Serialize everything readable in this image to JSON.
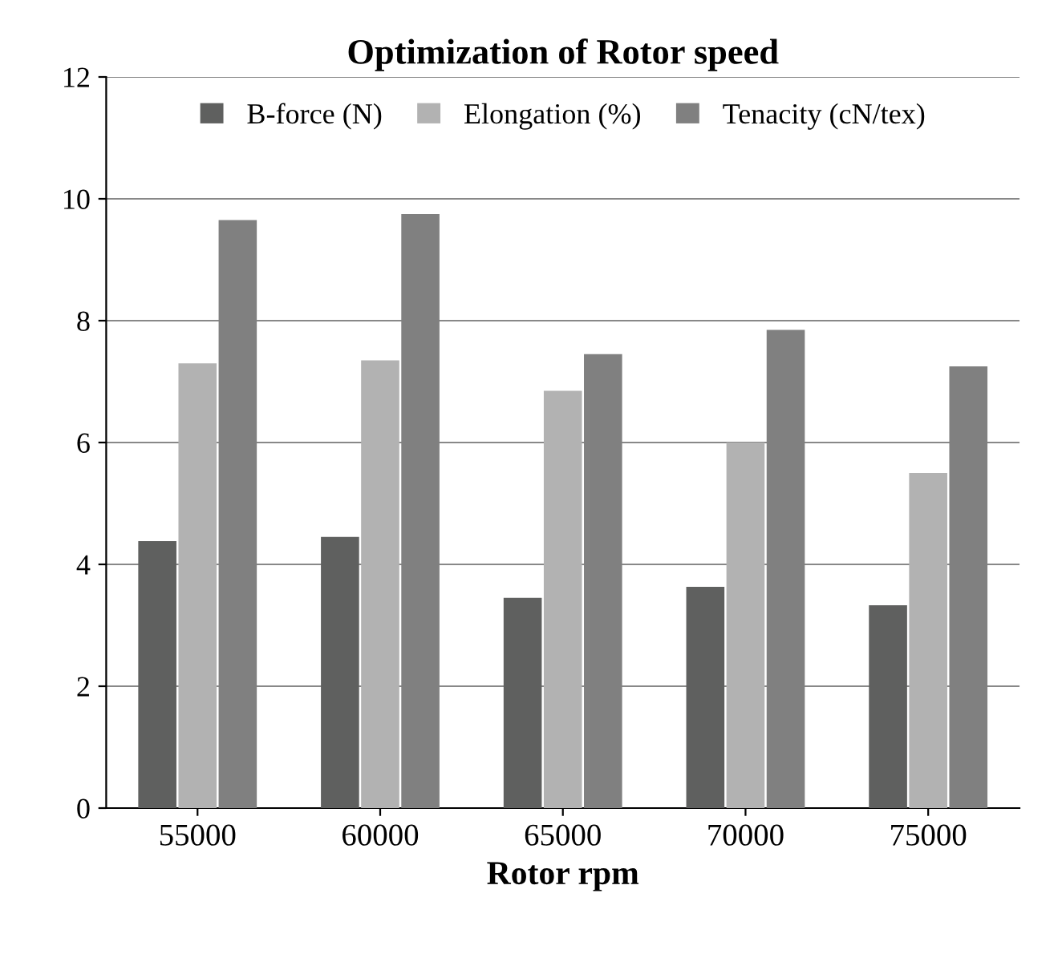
{
  "chart_data": {
    "type": "bar",
    "title": "Optimization of Rotor speed",
    "xlabel": "Rotor rpm",
    "categories": [
      "55000",
      "60000",
      "65000",
      "70000",
      "75000"
    ],
    "series": [
      {
        "name": "B-force (N)",
        "color": "#5f605f",
        "values": [
          4.38,
          4.45,
          3.45,
          3.63,
          3.33
        ]
      },
      {
        "name": "Elongation (%)",
        "color": "#b2b2b2",
        "values": [
          7.3,
          7.35,
          6.85,
          6.0,
          5.5
        ]
      },
      {
        "name": "Tenacity (cN/tex)",
        "color": "#808080",
        "values": [
          9.65,
          9.75,
          7.45,
          7.85,
          7.25
        ]
      }
    ],
    "ylim": [
      0,
      12
    ],
    "yticks": [
      0,
      2,
      4,
      6,
      8,
      10,
      12
    ],
    "grid": "y",
    "legend": "top"
  }
}
